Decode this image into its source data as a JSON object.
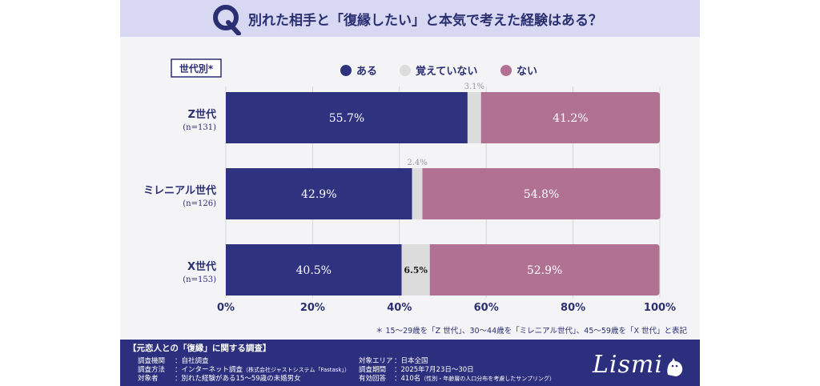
{
  "title": "別れた相手と「復縁したい」と本気で考えた経験はある？",
  "q_mark": "Q",
  "segment_label": "世代別*",
  "note": "＊ 15〜29歳を「Z 世代」、30〜44歳を「ミレニアル世代」、45〜59歳を「X 世代」と表記",
  "chart_data": {
    "type": "bar",
    "stacked": true,
    "orientation": "horizontal",
    "categories": [
      "Z世代",
      "ミレニアル世代",
      "X世代"
    ],
    "sample_sizes": [
      "(n=131)",
      "(n=126)",
      "(n=153)"
    ],
    "series": [
      {
        "name": "ある",
        "color": "#2f327f",
        "values": [
          55.7,
          42.9,
          40.5
        ],
        "labels": [
          "55.7%",
          "42.9%",
          "40.5%"
        ]
      },
      {
        "name": "覚えていない",
        "color": "#dcdcdc",
        "values": [
          3.1,
          2.4,
          6.5
        ],
        "labels": [
          "3.1%",
          "2.4%",
          "6.5%"
        ]
      },
      {
        "name": "ない",
        "color": "#b07193",
        "values": [
          41.2,
          54.8,
          52.9
        ],
        "labels": [
          "41.2%",
          "54.8%",
          "52.9%"
        ]
      }
    ],
    "xlim": [
      0,
      100
    ],
    "ticks": [
      "0%",
      "20%",
      "40%",
      "60%",
      "80%",
      "100%"
    ],
    "legend_position": "top"
  },
  "footer": {
    "title": "【元恋人との「復縁」に関する調査】",
    "left": [
      {
        "key": "調査機関",
        "value": "：自社調査",
        "small": ""
      },
      {
        "key": "調査方法",
        "value": "：インターネット調査",
        "small": "（株式会社ジャストシステム「Fastask」）"
      },
      {
        "key": "対象者",
        "value": "：別れた経験がある15〜59歳の未婚男女",
        "small": ""
      }
    ],
    "right": [
      {
        "key": "対象エリア",
        "value": "：日本全国",
        "small": ""
      },
      {
        "key": "調査期間",
        "value": "：2025年7月23日〜30日",
        "small": ""
      },
      {
        "key": "有効回答",
        "value": "：410名",
        "small": "（性別・年齢層の人口分布を考慮したサンプリング）"
      }
    ],
    "logo": "Lismi"
  }
}
